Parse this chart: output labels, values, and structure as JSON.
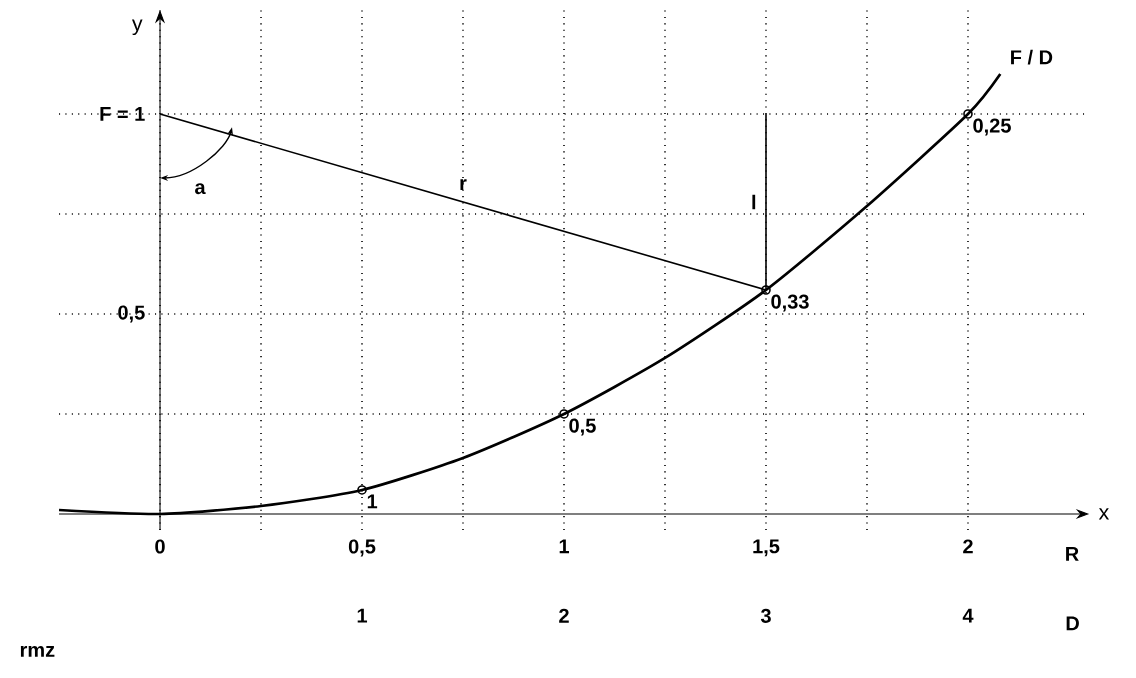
{
  "chart_data": {
    "type": "line",
    "xlabel": "x",
    "ylabel": "y",
    "x2label": "D",
    "xlim": [
      -0.25,
      2.3
    ],
    "ylim": [
      -0.04,
      1.26
    ],
    "xticks": [
      0,
      {
        "value": 0.25,
        "label": null
      },
      {
        "value": 0.5,
        "label": "0,5"
      },
      {
        "value": 0.75,
        "label": null
      },
      1,
      {
        "value": 1.25,
        "label": null
      },
      {
        "value": 1.5,
        "label": "1,5"
      },
      {
        "value": 1.75,
        "label": null
      },
      2
    ],
    "yticks": [
      {
        "value": 0.25,
        "label": null
      },
      {
        "value": 0.5,
        "label": "0,5"
      },
      {
        "value": 0.75,
        "label": null
      },
      {
        "value": 1,
        "label": "F = 1"
      }
    ],
    "x2lim": [
      -0.5,
      4.6
    ],
    "x2ticks": [
      1,
      2,
      3,
      4
    ],
    "grid": true,
    "line_style": "solid",
    "marker": "none",
    "series": [
      {
        "name": "F / D",
        "color": "#000000",
        "x": [
          -0.25,
          0,
          0.25,
          0.5,
          0.75,
          1,
          1.25,
          1.5,
          1.75,
          2,
          2.08
        ],
        "values": [
          0.01,
          0,
          0.02,
          0.06,
          0.14,
          0.25,
          0.39,
          0.56,
          0.77,
          1,
          1.1
        ]
      },
      {
        "type": "scatter",
        "marker": "circle",
        "color": "#000000",
        "x": [
          0.5,
          1,
          1.5,
          2
        ],
        "values": [
          0.06,
          0.25,
          0.56,
          1
        ]
      },
      {
        "name": "r",
        "color": "#000000",
        "x": [
          0,
          1.5
        ],
        "values": [
          1,
          0.56
        ]
      },
      {
        "name": "l",
        "color": "#000000",
        "x": [
          1.5,
          1.5
        ],
        "values": [
          0.56,
          1
        ]
      }
    ],
    "annotations": [
      "R",
      "a",
      "rmz",
      {
        "text": "1",
        "x": 0.5,
        "y": 0.06
      },
      {
        "text": "0,5",
        "x": 1,
        "y": 0.25
      },
      {
        "text": "0,33",
        "x": 1.5,
        "y": 0.56
      },
      {
        "text": "0,25",
        "x": 2,
        "y": 1
      }
    ]
  }
}
